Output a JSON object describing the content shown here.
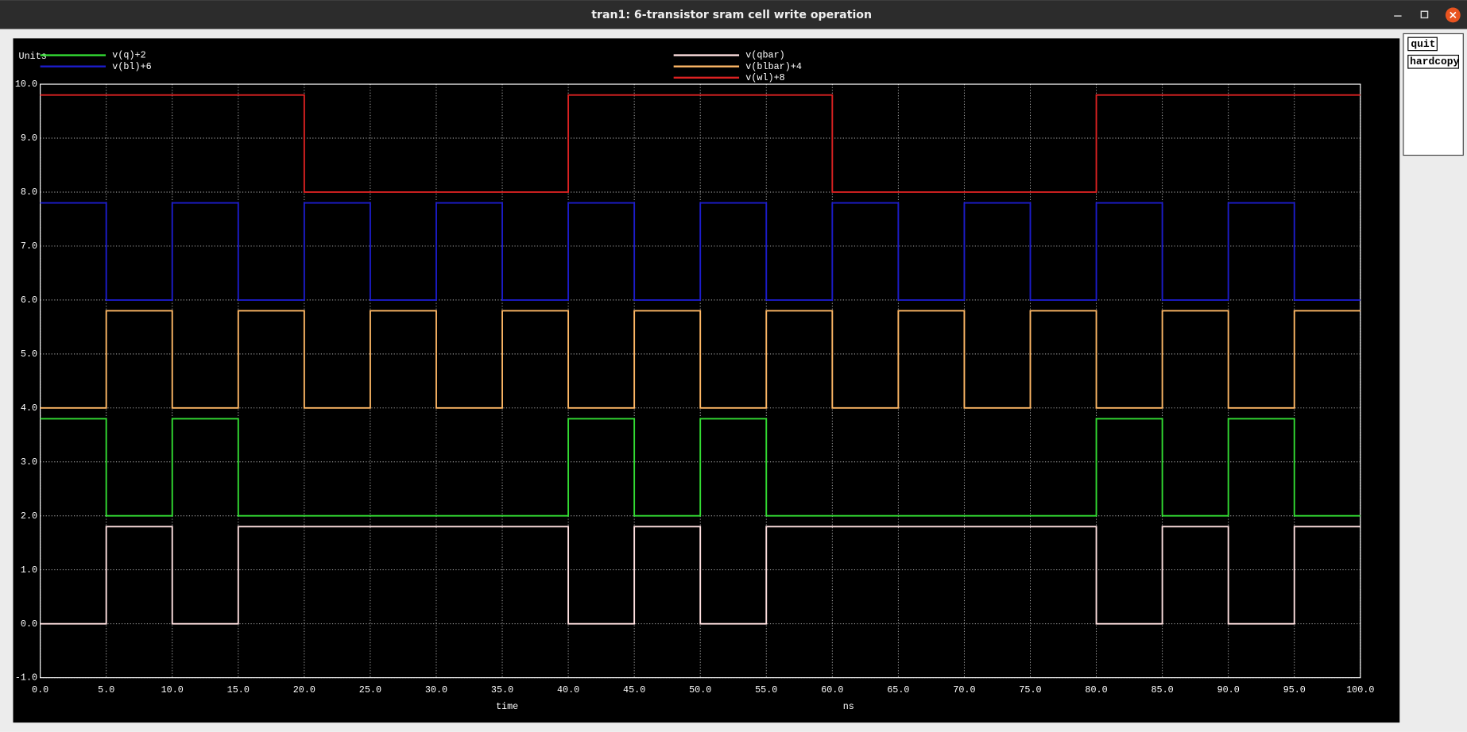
{
  "window": {
    "title": "tran1: 6-transistor sram cell write operation",
    "buttons": [
      "quit",
      "hardcopy"
    ]
  },
  "chart_data": {
    "type": "line",
    "ylabel": "Units",
    "xlabel": "time",
    "xunit": "ns",
    "grid": true,
    "x": [
      0,
      5,
      5,
      10,
      10,
      15,
      15,
      20,
      20,
      25,
      25,
      30,
      30,
      35,
      35,
      40,
      40,
      45,
      45,
      50,
      50,
      55,
      55,
      60,
      60,
      65,
      65,
      70,
      70,
      75,
      75,
      80,
      80,
      85,
      85,
      90,
      90,
      95,
      95,
      100
    ],
    "series": [
      {
        "name": "v(q)+2",
        "color": "#33dd33",
        "values": [
          3.8,
          3.8,
          2,
          2,
          3.8,
          3.8,
          2,
          2,
          2,
          2,
          2,
          2,
          2,
          2,
          2,
          2,
          3.8,
          3.8,
          2,
          2,
          3.8,
          3.8,
          2,
          2,
          2,
          2,
          2,
          2,
          2,
          2,
          2,
          2,
          3.8,
          3.8,
          2,
          2,
          3.8,
          3.8,
          2,
          2
        ]
      },
      {
        "name": "v(bl)+6",
        "color": "#1c1ccc",
        "values": [
          7.8,
          7.8,
          6,
          6,
          7.8,
          7.8,
          6,
          6,
          7.8,
          7.8,
          6,
          6,
          7.8,
          7.8,
          6,
          6,
          7.8,
          7.8,
          6,
          6,
          7.8,
          7.8,
          6,
          6,
          7.8,
          7.8,
          6,
          6,
          7.8,
          7.8,
          6,
          6,
          7.8,
          7.8,
          6,
          6,
          7.8,
          7.8,
          6,
          6
        ]
      },
      {
        "name": "v(qbar)",
        "color": "#ffe0e0",
        "values": [
          0,
          0,
          1.8,
          1.8,
          0,
          0,
          1.8,
          1.8,
          1.8,
          1.8,
          1.8,
          1.8,
          1.8,
          1.8,
          1.8,
          1.8,
          0,
          0,
          1.8,
          1.8,
          0,
          0,
          1.8,
          1.8,
          1.8,
          1.8,
          1.8,
          1.8,
          1.8,
          1.8,
          1.8,
          1.8,
          0,
          0,
          1.8,
          1.8,
          0,
          0,
          1.8,
          1.8
        ]
      },
      {
        "name": "v(blbar)+4",
        "color": "#ffb866",
        "values": [
          4,
          4,
          5.8,
          5.8,
          4,
          4,
          5.8,
          5.8,
          4,
          4,
          5.8,
          5.8,
          4,
          4,
          5.8,
          5.8,
          4,
          4,
          5.8,
          5.8,
          4,
          4,
          5.8,
          5.8,
          4,
          4,
          5.8,
          5.8,
          4,
          4,
          5.8,
          5.8,
          4,
          4,
          5.8,
          5.8,
          4,
          4,
          5.8,
          5.8
        ]
      },
      {
        "name": "v(wl)+8",
        "color": "#dd2222",
        "values": [
          9.8,
          9.8,
          9.8,
          9.8,
          9.8,
          9.8,
          9.8,
          9.8,
          8,
          8,
          8,
          8,
          8,
          8,
          8,
          8,
          9.8,
          9.8,
          9.8,
          9.8,
          9.8,
          9.8,
          9.8,
          9.8,
          8,
          8,
          8,
          8,
          8,
          8,
          8,
          8,
          9.8,
          9.8,
          9.8,
          9.8,
          9.8,
          9.8,
          9.8,
          9.8
        ]
      }
    ],
    "xlim": [
      0,
      100
    ],
    "ylim": [
      -1,
      10
    ],
    "xticks": [
      {
        "value": 0,
        "label": "0.0"
      },
      {
        "value": 5,
        "label": "5.0"
      },
      {
        "value": 10,
        "label": "10.0"
      },
      {
        "value": 15,
        "label": "15.0"
      },
      {
        "value": 20,
        "label": "20.0"
      },
      {
        "value": 25,
        "label": "25.0"
      },
      {
        "value": 30,
        "label": "30.0"
      },
      {
        "value": 35,
        "label": "35.0"
      },
      {
        "value": 40,
        "label": "40.0"
      },
      {
        "value": 45,
        "label": "45.0"
      },
      {
        "value": 50,
        "label": "50.0"
      },
      {
        "value": 55,
        "label": "55.0"
      },
      {
        "value": 60,
        "label": "60.0"
      },
      {
        "value": 65,
        "label": "65.0"
      },
      {
        "value": 70,
        "label": "70.0"
      },
      {
        "value": 75,
        "label": "75.0"
      },
      {
        "value": 80,
        "label": "80.0"
      },
      {
        "value": 85,
        "label": "85.0"
      },
      {
        "value": 90,
        "label": "90.0"
      },
      {
        "value": 95,
        "label": "95.0"
      },
      {
        "value": 100,
        "label": "100.0"
      }
    ],
    "yticks": [
      {
        "value": -1,
        "label": "-1.0"
      },
      {
        "value": 0,
        "label": "0.0"
      },
      {
        "value": 1,
        "label": "1.0"
      },
      {
        "value": 2,
        "label": "2.0"
      },
      {
        "value": 3,
        "label": "3.0"
      },
      {
        "value": 4,
        "label": "4.0"
      },
      {
        "value": 5,
        "label": "5.0"
      },
      {
        "value": 6,
        "label": "6.0"
      },
      {
        "value": 7,
        "label": "7.0"
      },
      {
        "value": 8,
        "label": "8.0"
      },
      {
        "value": 9,
        "label": "9.0"
      },
      {
        "value": 10,
        "label": "10.0"
      }
    ]
  }
}
